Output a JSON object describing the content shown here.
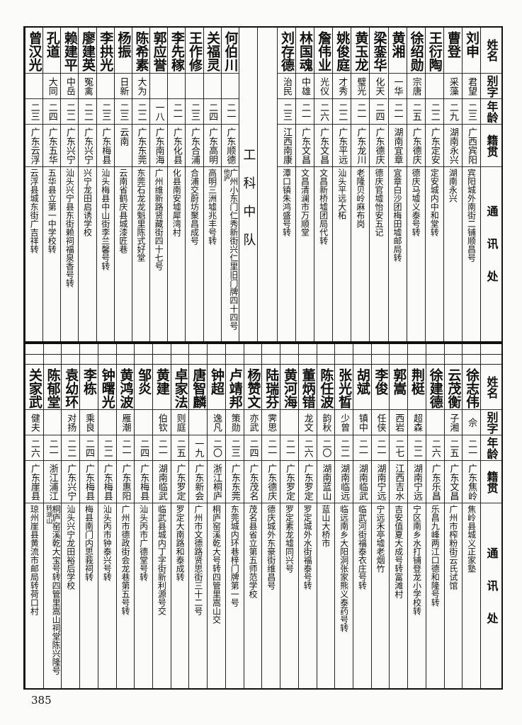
{
  "headers": {
    "name": "姓名",
    "alias": "别字",
    "age": "年龄",
    "origin": "籍贯",
    "address": "通讯处"
  },
  "top_table": {
    "right_group": [
      {
        "name": "刘申",
        "alias": "君望",
        "age": "二三",
        "origin": "广西宾阳",
        "address": "宾阳城外南街二铺顺昌号"
      },
      {
        "name": "曹登",
        "alias": "采藻",
        "age": "二九",
        "origin": "湖南永兴",
        "address": "湖南永兴"
      },
      {
        "name": "王衍陶",
        "alias": "",
        "age": "二二",
        "origin": "广东定安",
        "address": "定安城内中和堂转"
      },
      {
        "name": "徐绍勋",
        "alias": "宗唐",
        "age": "二五",
        "origin": "广东德庆",
        "address": "德庆马墟义泰号转"
      },
      {
        "name": "黄湘",
        "alias": "一华",
        "age": "二一",
        "origin": "湖南宜章",
        "address": "宜章白沙团梅田墟邮局转"
      },
      {
        "name": "梁銮华",
        "alias": "化天",
        "age": "二四",
        "origin": "广东德庆",
        "address": "德庆官墟怡安五记"
      },
      {
        "name": "黄玉龙",
        "alias": "璧光",
        "age": "二一",
        "origin": "广东龙川",
        "address": "老隆贝岭麻布岗"
      },
      {
        "name": "姚俊庭",
        "alias": "才秀",
        "age": "二二",
        "origin": "广东平远",
        "address": "汕头平远大柘"
      },
      {
        "name": "詹伟业",
        "alias": "光仪",
        "age": "二六",
        "origin": "广东文昌",
        "address": "文昌新桥墟团局代转"
      },
      {
        "name": "林国魂",
        "alias": "中雄",
        "age": "二一",
        "origin": "广东文昌",
        "address": "文昌清澜市万顺堂"
      },
      {
        "name": "刘存德",
        "alias": "治民",
        "age": "二三",
        "origin": "江西南康",
        "address": "潭口镇朱鸿盛号转"
      }
    ],
    "section_label": "工科中队",
    "left_group": [
      {
        "name": "何伯川",
        "alias": "",
        "age": "二一",
        "origin": "广东顺德",
        "address": "广州小东门仁秀新街兴仁里旧门牌四十四号",
        "address_note": "他庐"
      },
      {
        "name": "关福灵",
        "alias": "",
        "age": "二四",
        "origin": "广东高明",
        "address": "高明三洲墟兆丰号转"
      },
      {
        "name": "王作修",
        "alias": "",
        "age": "二三",
        "origin": "广东合浦",
        "address": "合浦交蔚坊聚昌成号"
      },
      {
        "name": "李先稼",
        "alias": "",
        "age": "二一",
        "origin": "广东化县",
        "address": "化县南安墟犀湾村"
      },
      {
        "name": "郭应誉",
        "alias": "",
        "age": "一八",
        "origin": "广东南海",
        "address": "广州维新路贤藏街四十七号"
      },
      {
        "name": "陈希素",
        "alias": "大为",
        "age": "二二",
        "origin": "广东东莞",
        "address": "东莞石龙龙魁里陈式好堂"
      },
      {
        "name": "杨振",
        "alias": "日新",
        "age": "二三",
        "origin": "云南",
        "address": "云南省鹤庆县城漆匠巷"
      },
      {
        "name": "李拱光",
        "alias": "",
        "age": "二三",
        "origin": "广东梅县",
        "address": "汕头梅县中山街李兰馨号转"
      },
      {
        "name": "廖建英",
        "alias": "冤禽",
        "age": "二二",
        "origin": "广东兴宁",
        "address": "兴宁龙田启诱学校"
      },
      {
        "name": "赖建平",
        "alias": "中岳",
        "age": "二二",
        "origin": "广东兴宁",
        "address": "汕头兴宁县东街赖祠福泉香号转"
      },
      {
        "name": "孔道",
        "alias": "大同",
        "age": "二四",
        "origin": "广东五华",
        "address": "五华县立第一中学校转"
      },
      {
        "name": "曾汉光",
        "alias": "",
        "age": "二三",
        "origin": "广东云浮",
        "address": "云浮县城东街广吉祥转"
      }
    ]
  },
  "bottom_table": {
    "rows": [
      {
        "name": "徐志伟",
        "alias": "佘",
        "age": "二一",
        "origin": "广东焦岭",
        "address": "焦岭县城义正家塾"
      },
      {
        "name": "云茂衡",
        "alias": "子湘",
        "age": "二五",
        "origin": "广东文昌",
        "address": "广州市榨粉街云氏试馆"
      },
      {
        "name": "徐建德",
        "alias": "",
        "age": "二六",
        "origin": "广东乐昌",
        "address": "乐昌九峰两江口德和隆号转"
      },
      {
        "name": "荆梃",
        "alias": "超森",
        "age": "二二",
        "origin": "湖南宁远",
        "address": "宁区南乡水打铺登龙小学校转"
      },
      {
        "name": "郭嵩",
        "alias": "西岩",
        "age": "二七",
        "origin": "江西吉水",
        "address": "吉安值夏大成号转富滩村"
      },
      {
        "name": "李俊",
        "alias": "任侠",
        "age": "二一",
        "origin": "湖南宁远",
        "address": "宁远禾亭墟老烟竹"
      },
      {
        "name": "胡斌",
        "alias": "镇中",
        "age": "二一",
        "origin": "湖南临武",
        "address": "临武河街福泰衣庄号转"
      },
      {
        "name": "张光晳",
        "alias": "少曾",
        "age": "二二",
        "origin": "湖南临远",
        "address": "临远南乡大阳洞张家熊义泰药号转"
      },
      {
        "name": "陈任波",
        "alias": "韵秋",
        "age": "二〇",
        "origin": "湖南蓝山",
        "address": "蓝山大桥市"
      },
      {
        "name": "董炳错",
        "alias": "龙文",
        "age": "二六",
        "origin": "广东罗定",
        "address": "罗定城外水街福泰号转"
      },
      {
        "name": "黄河海",
        "alias": "",
        "age": "二一",
        "origin": "广东罗定",
        "address": "罗定素龙墟同兴号"
      },
      {
        "name": "陆瑞芬",
        "alias": "霁思",
        "age": "二一",
        "origin": "广东德庆",
        "address": "德庆城外东豪街维昌号"
      },
      {
        "name": "杨赞文",
        "alias": "亦武",
        "age": "二四",
        "origin": "广东茂名",
        "address": "茂名县省立第五师范学校"
      },
      {
        "name": "卢靖邦",
        "alias": "策勋",
        "age": "二三",
        "origin": "广东东莞",
        "address": "东莞城内环巷梓门牌第一号"
      },
      {
        "name": "钟超",
        "alias": "逸凡",
        "age": "二〇",
        "origin": "浙江桐庐",
        "address": "桐庐窑溪乾大号转四管里嵩山交"
      },
      {
        "name": "唐智麟",
        "alias": "",
        "age": "一九",
        "origin": "广东新会",
        "address": "广州市文德路贤思街三十二号"
      },
      {
        "name": "卓家法",
        "alias": "则庭",
        "age": "二五",
        "origin": "广东罗定",
        "address": "罗定大南路和泰成转"
      },
      {
        "name": "黄建",
        "alias": "伯钦",
        "age": "二一",
        "origin": "湖南临武",
        "address": "临武县城内丁字街新利源号交"
      },
      {
        "name": "邹炎",
        "alias": "",
        "age": "二四",
        "origin": "广东梅县",
        "address": "汕头丙市广德堂号转"
      },
      {
        "name": "黄鸿波",
        "alias": "雁潮",
        "age": "二一",
        "origin": "广东惠阳",
        "address": "广州市德政街会龙巷第五号转"
      },
      {
        "name": "钟曙光",
        "alias": "",
        "age": "二二",
        "origin": "广东梅县",
        "address": "汕头丙市钟泰兴号转"
      },
      {
        "name": "李栋",
        "alias": "乘良",
        "age": "二四",
        "origin": "广东梅县",
        "address": "梅县南门内思莪祠转"
      },
      {
        "name": "袁幼环",
        "alias": "对扬",
        "age": "二二",
        "origin": "广东兴宁",
        "address": "汕头兴宁龙田裕后学校"
      },
      {
        "name": "陈郁堂",
        "alias": "",
        "age": "二一",
        "origin": "浙江浦江",
        "address": "桐庐窑溪乾大宝号转四管里嵩山祠堂陈兴隆号",
        "address_note": "转湖山"
      },
      {
        "name": "关家武",
        "alias": "健夫",
        "age": "二六",
        "origin": "广东崖县",
        "address": "琼州崖县黄流市邮局转荷口村"
      }
    ]
  },
  "page_number": "385"
}
